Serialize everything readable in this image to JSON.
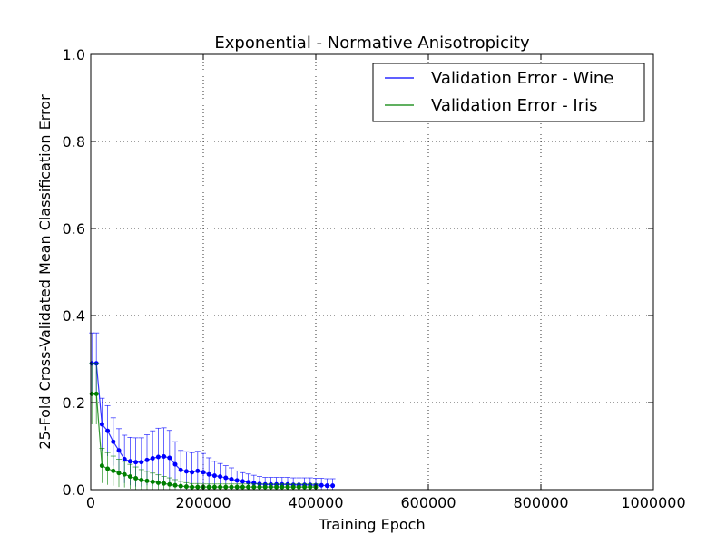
{
  "chart_data": {
    "type": "line",
    "title": "Exponential - Normative Anisotropicity",
    "xlabel": "Training Epoch",
    "ylabel": "25-Fold Cross-Validated Mean Classification Error",
    "xlim": [
      0,
      1000000
    ],
    "ylim": [
      0,
      1.0
    ],
    "xticks": [
      0,
      200000,
      400000,
      600000,
      800000,
      1000000
    ],
    "xtick_labels": [
      "0",
      "200000",
      "400000",
      "600000",
      "800000",
      "1000000"
    ],
    "yticks": [
      0.0,
      0.2,
      0.4,
      0.6,
      0.8,
      1.0
    ],
    "ytick_labels": [
      "0.0",
      "0.2",
      "0.4",
      "0.6",
      "0.8",
      "1.0"
    ],
    "grid": true,
    "legend_position": "top-right",
    "series": [
      {
        "name": "Validation Error - Wine",
        "color": "#0000ff",
        "x": [
          2000,
          10000,
          20000,
          30000,
          40000,
          50000,
          60000,
          70000,
          80000,
          90000,
          100000,
          110000,
          120000,
          130000,
          140000,
          150000,
          160000,
          170000,
          180000,
          190000,
          200000,
          210000,
          220000,
          230000,
          240000,
          250000,
          260000,
          270000,
          280000,
          290000,
          300000,
          310000,
          320000,
          330000,
          340000,
          350000,
          360000,
          370000,
          380000,
          390000,
          400000,
          410000,
          420000,
          430000
        ],
        "y": [
          0.29,
          0.29,
          0.15,
          0.135,
          0.11,
          0.09,
          0.07,
          0.065,
          0.063,
          0.063,
          0.068,
          0.072,
          0.075,
          0.076,
          0.073,
          0.058,
          0.045,
          0.042,
          0.04,
          0.043,
          0.04,
          0.035,
          0.032,
          0.03,
          0.027,
          0.024,
          0.021,
          0.019,
          0.017,
          0.015,
          0.013,
          0.012,
          0.012,
          0.012,
          0.012,
          0.012,
          0.011,
          0.011,
          0.011,
          0.011,
          0.01,
          0.01,
          0.009,
          0.009
        ],
        "error": [
          0.07,
          0.07,
          0.06,
          0.058,
          0.055,
          0.05,
          0.055,
          0.055,
          0.056,
          0.056,
          0.058,
          0.063,
          0.066,
          0.066,
          0.063,
          0.052,
          0.045,
          0.045,
          0.045,
          0.045,
          0.043,
          0.038,
          0.033,
          0.03,
          0.028,
          0.026,
          0.022,
          0.02,
          0.019,
          0.018,
          0.017,
          0.016,
          0.016,
          0.016,
          0.016,
          0.016,
          0.016,
          0.016,
          0.016,
          0.016,
          0.016,
          0.016,
          0.016,
          0.016
        ]
      },
      {
        "name": "Validation Error - Iris",
        "color": "#008000",
        "x": [
          2000,
          10000,
          20000,
          30000,
          40000,
          50000,
          60000,
          70000,
          80000,
          90000,
          100000,
          110000,
          120000,
          130000,
          140000,
          150000,
          160000,
          170000,
          180000,
          190000,
          200000,
          210000,
          220000,
          230000,
          240000,
          250000,
          260000,
          270000,
          280000,
          290000,
          300000,
          310000,
          320000,
          330000,
          340000,
          350000,
          360000,
          370000,
          380000,
          390000,
          400000
        ],
        "y": [
          0.22,
          0.22,
          0.055,
          0.048,
          0.043,
          0.038,
          0.035,
          0.03,
          0.026,
          0.022,
          0.02,
          0.018,
          0.016,
          0.014,
          0.012,
          0.01,
          0.008,
          0.007,
          0.006,
          0.006,
          0.006,
          0.006,
          0.006,
          0.006,
          0.006,
          0.006,
          0.006,
          0.006,
          0.006,
          0.006,
          0.006,
          0.006,
          0.006,
          0.006,
          0.006,
          0.006,
          0.006,
          0.006,
          0.006,
          0.006,
          0.006
        ],
        "error": [
          0.07,
          0.07,
          0.04,
          0.037,
          0.034,
          0.032,
          0.03,
          0.028,
          0.026,
          0.024,
          0.022,
          0.02,
          0.018,
          0.016,
          0.015,
          0.013,
          0.011,
          0.009,
          0.008,
          0.008,
          0.007,
          0.007,
          0.007,
          0.007,
          0.007,
          0.007,
          0.007,
          0.007,
          0.007,
          0.007,
          0.007,
          0.007,
          0.007,
          0.007,
          0.007,
          0.007,
          0.007,
          0.007,
          0.007,
          0.007,
          0.007
        ]
      }
    ]
  }
}
